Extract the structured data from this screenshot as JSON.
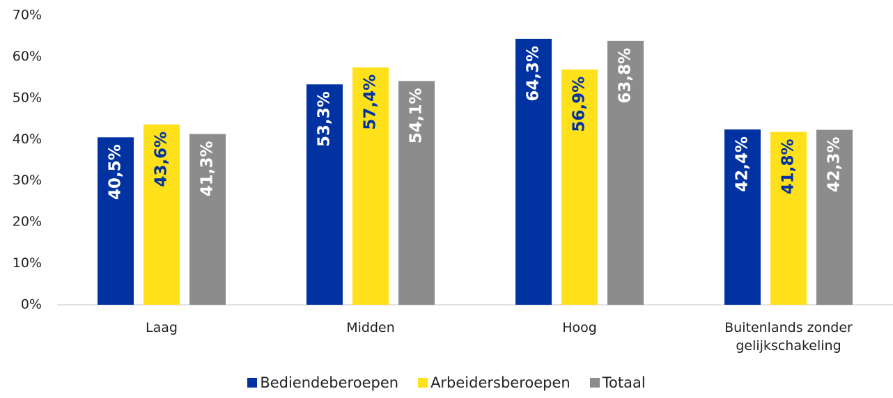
{
  "chart_data": {
    "type": "bar",
    "categories": [
      "Laag",
      "Midden",
      "Hoog",
      "Buitenlands zonder gelijkschakeling"
    ],
    "series": [
      {
        "name": "Bediendeberoepen",
        "color": "#0033a1",
        "label_color": "#ffffff",
        "values": [
          40.5,
          53.3,
          64.3,
          42.4
        ],
        "value_labels": [
          "40,5%",
          "53,3%",
          "64,3%",
          "42,4%"
        ]
      },
      {
        "name": "Arbeidersberoepen",
        "color": "#ffe11b",
        "label_color": "#0033a1",
        "values": [
          43.6,
          57.4,
          56.9,
          41.8
        ],
        "value_labels": [
          "43,6%",
          "57,4%",
          "56,9%",
          "41,8%"
        ]
      },
      {
        "name": "Totaal",
        "color": "#8c8c8c",
        "label_color": "#ffffff",
        "values": [
          41.3,
          54.1,
          63.8,
          42.3
        ],
        "value_labels": [
          "41,3%",
          "54,1%",
          "63,8%",
          "42,3%"
        ]
      }
    ],
    "ylim": [
      0,
      70
    ],
    "yticks": [
      {
        "value": 0,
        "label": "0%"
      },
      {
        "value": 10,
        "label": "10%"
      },
      {
        "value": 20,
        "label": "20%"
      },
      {
        "value": 30,
        "label": "30%"
      },
      {
        "value": 40,
        "label": "40%"
      },
      {
        "value": 50,
        "label": "50%"
      },
      {
        "value": 60,
        "label": "60%"
      },
      {
        "value": 70,
        "label": "70%"
      }
    ],
    "grid": false
  }
}
